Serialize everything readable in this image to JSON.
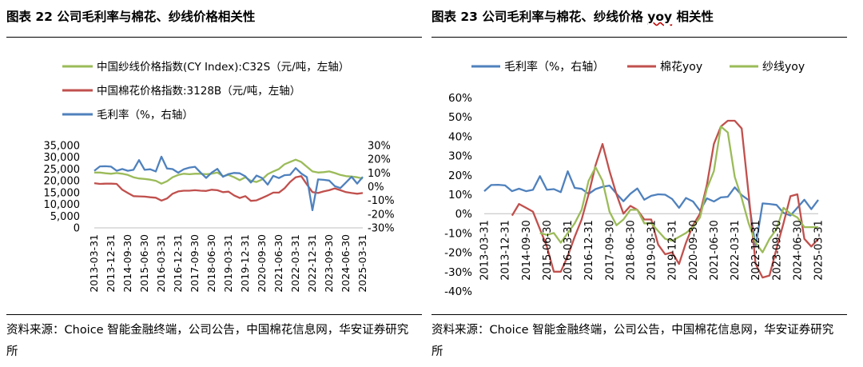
{
  "left": {
    "title": "图表 22 公司毛利率与棉花、纱线价格相关性",
    "source": "资料来源：Choice 智能金融终端，公司公告，中国棉花信息网，华安证券研究所",
    "chart_data": {
      "type": "line",
      "x": [
        "2013-03-31",
        "2013-06-30",
        "2013-09-30",
        "2013-12-31",
        "2014-03-31",
        "2014-06-30",
        "2014-09-30",
        "2014-12-31",
        "2015-03-31",
        "2015-06-30",
        "2015-09-30",
        "2015-12-31",
        "2016-03-31",
        "2016-06-30",
        "2016-09-30",
        "2016-12-31",
        "2017-03-31",
        "2017-06-30",
        "2017-09-30",
        "2017-12-31",
        "2018-03-31",
        "2018-06-30",
        "2018-09-30",
        "2018-12-31",
        "2019-03-31",
        "2019-06-30",
        "2019-09-30",
        "2019-12-31",
        "2020-03-31",
        "2020-06-30",
        "2020-09-30",
        "2020-12-31",
        "2021-03-31",
        "2021-06-30",
        "2021-09-30",
        "2021-12-31",
        "2022-03-31",
        "2022-06-30",
        "2022-09-30",
        "2022-12-31",
        "2023-03-31",
        "2023-06-30",
        "2023-09-30",
        "2023-12-31",
        "2024-03-31",
        "2024-06-30",
        "2024-09-30",
        "2024-12-31",
        "2025-03-31"
      ],
      "x_tick_labels": [
        "2013-03-31",
        "2013-12-31",
        "2014-09-30",
        "2015-06-30",
        "2016-03-31",
        "2016-12-31",
        "2017-09-30",
        "2018-06-30",
        "2019-03-31",
        "2019-12-31",
        "2020-09-30",
        "2021-06-30",
        "2022-03-31",
        "2022-12-31",
        "2023-09-30",
        "2024-06-30",
        "2025-03-31"
      ],
      "y_left": {
        "ylim": [
          0,
          35000
        ],
        "ticks": [
          "0",
          "5,000",
          "10,000",
          "15,000",
          "20,000",
          "25,000",
          "30,000",
          "35,000"
        ]
      },
      "y_right": {
        "ylim": [
          -30,
          30
        ],
        "ticks": [
          "-30%",
          "-20%",
          "-10%",
          "0%",
          "10%",
          "20%",
          "30%"
        ]
      },
      "legend_position": "top-left",
      "grid": false,
      "series": [
        {
          "name": "中国棉花价格指数:3128B（元/吨，左轴）",
          "axis": "left",
          "color": "#c0504d",
          "values": [
            19000,
            18700,
            18800,
            18800,
            18700,
            16200,
            14800,
            13500,
            13400,
            13300,
            13000,
            12800,
            11600,
            12500,
            14500,
            15500,
            15800,
            15800,
            16000,
            15800,
            15700,
            16200,
            16000,
            15200,
            15400,
            13800,
            12700,
            13500,
            11500,
            11700,
            12700,
            13800,
            15000,
            15000,
            16800,
            19500,
            21500,
            22000,
            18500,
            15200,
            14800,
            15500,
            16000,
            16800,
            16000,
            15200,
            14800,
            14500,
            14800
          ]
        },
        {
          "name": "中国纱线价格指数(CY Index):C32S（元/吨，左轴）",
          "axis": "left",
          "color": "#9bbb59",
          "values": [
            23500,
            23500,
            23200,
            23000,
            23300,
            23000,
            22500,
            21500,
            21000,
            20800,
            20500,
            20000,
            18800,
            19800,
            21500,
            22500,
            23000,
            22800,
            23000,
            23000,
            22800,
            23000,
            23500,
            22000,
            22500,
            21500,
            20300,
            21500,
            20000,
            19500,
            20600,
            22800,
            24000,
            25000,
            27000,
            28000,
            29000,
            28000,
            26000,
            24000,
            23500,
            23700,
            24000,
            23300,
            22500,
            22000,
            21800,
            21500,
            21000
          ]
        },
        {
          "name": "毛利率（%，右轴）",
          "axis": "right",
          "color": "#4f81bd",
          "values": [
            11.6,
            14.8,
            14.9,
            14.6,
            11.6,
            12.9,
            11.6,
            12.3,
            19.4,
            12.3,
            12.7,
            11.1,
            21.9,
            13.3,
            12.8,
            10.2,
            12.7,
            13.9,
            14.5,
            10.3,
            6.4,
            10.3,
            13.0,
            7.2,
            9.2,
            10.0,
            9.8,
            7.6,
            3.0,
            8.1,
            6.3,
            1.5,
            7.9,
            6.3,
            8.4,
            8.7,
            13.6,
            9.6,
            7.0,
            -17.1,
            5.3,
            5.0,
            4.5,
            0.4,
            -1.0,
            3.1,
            7.2,
            2.3,
            7.1
          ]
        }
      ]
    }
  },
  "right": {
    "title_main": "图表 23 公司毛利率与棉花、纱线价格 ",
    "title_yoy": "yoy",
    "title_tail": " 相关性",
    "source": "资料来源：Choice 智能金融终端，公司公告，中国棉花信息网，华安证券研究所",
    "chart_data": {
      "type": "line",
      "x": [
        "2013-03-31",
        "2013-06-30",
        "2013-09-30",
        "2013-12-31",
        "2014-03-31",
        "2014-06-30",
        "2014-09-30",
        "2014-12-31",
        "2015-03-31",
        "2015-06-30",
        "2015-09-30",
        "2015-12-31",
        "2016-03-31",
        "2016-06-30",
        "2016-09-30",
        "2016-12-31",
        "2017-03-31",
        "2017-06-30",
        "2017-09-30",
        "2017-12-31",
        "2018-03-31",
        "2018-06-30",
        "2018-09-30",
        "2018-12-31",
        "2019-03-31",
        "2019-06-30",
        "2019-09-30",
        "2019-12-31",
        "2020-03-31",
        "2020-06-30",
        "2020-09-30",
        "2020-12-31",
        "2021-03-31",
        "2021-06-30",
        "2021-09-30",
        "2021-12-31",
        "2022-03-31",
        "2022-06-30",
        "2022-09-30",
        "2022-12-31",
        "2023-03-31",
        "2023-06-30",
        "2023-09-30",
        "2023-12-31",
        "2024-03-31",
        "2024-06-30",
        "2024-09-30",
        "2024-12-31",
        "2025-03-31"
      ],
      "x_tick_labels": [
        "2013-03-31",
        "2013-12-31",
        "2014-09-30",
        "2015-06-30",
        "2016-03-31",
        "2016-12-31",
        "2017-09-30",
        "2018-06-30",
        "2019-03-31",
        "2019-12-31",
        "2020-09-30",
        "2021-06-30",
        "2022-03-31",
        "2022-12-31",
        "2023-09-30",
        "2024-06-30",
        "2025-03-31"
      ],
      "ylim": [
        -40,
        60
      ],
      "y_ticks": [
        "-40%",
        "-30%",
        "-20%",
        "-10%",
        "0%",
        "10%",
        "20%",
        "30%",
        "40%",
        "50%",
        "60%"
      ],
      "legend_position": "top",
      "grid": false,
      "series": [
        {
          "name": "毛利率（%，右轴）",
          "color": "#4f81bd",
          "values": [
            11.6,
            14.8,
            14.9,
            14.6,
            11.6,
            12.9,
            11.6,
            12.3,
            19.4,
            12.3,
            12.7,
            11.1,
            21.9,
            13.3,
            12.8,
            10.2,
            12.7,
            13.9,
            14.5,
            10.3,
            6.4,
            10.3,
            13.0,
            7.2,
            9.2,
            10.0,
            9.8,
            7.6,
            3.0,
            8.1,
            6.3,
            1.5,
            7.9,
            6.3,
            8.4,
            8.7,
            13.6,
            9.6,
            7.0,
            -17.1,
            5.3,
            5.0,
            4.5,
            0.4,
            -1.0,
            3.1,
            7.2,
            2.3,
            7.1
          ]
        },
        {
          "name": "棉花yoy",
          "color": "#c0504d",
          "values": [
            null,
            null,
            null,
            null,
            -1,
            5,
            3,
            1,
            -8,
            -17,
            -30,
            -30,
            -22,
            -12,
            -3,
            10,
            25,
            36,
            22,
            10,
            0,
            4,
            2,
            -3,
            -3,
            -16,
            -21,
            -20,
            -26,
            -15,
            -6,
            0,
            15,
            36,
            45,
            48,
            48,
            44,
            10,
            -26,
            -33,
            -32,
            -18,
            -5,
            9,
            10,
            -13,
            -17,
            -13
          ]
        },
        {
          "name": "纱线yoy",
          "color": "#9bbb59",
          "values": [
            null,
            null,
            null,
            null,
            null,
            null,
            null,
            null,
            -10,
            -11,
            -10,
            -15,
            -10,
            -5,
            2,
            17,
            24,
            17,
            1,
            -6,
            -3,
            2,
            2,
            -5,
            -5,
            -9,
            -13,
            -14,
            -12,
            -10,
            -7,
            -2,
            13,
            22,
            45,
            42,
            19,
            8,
            -5,
            -15,
            -20,
            -13,
            -8,
            3,
            0,
            -2,
            -7,
            -7,
            -7
          ]
        }
      ]
    }
  }
}
